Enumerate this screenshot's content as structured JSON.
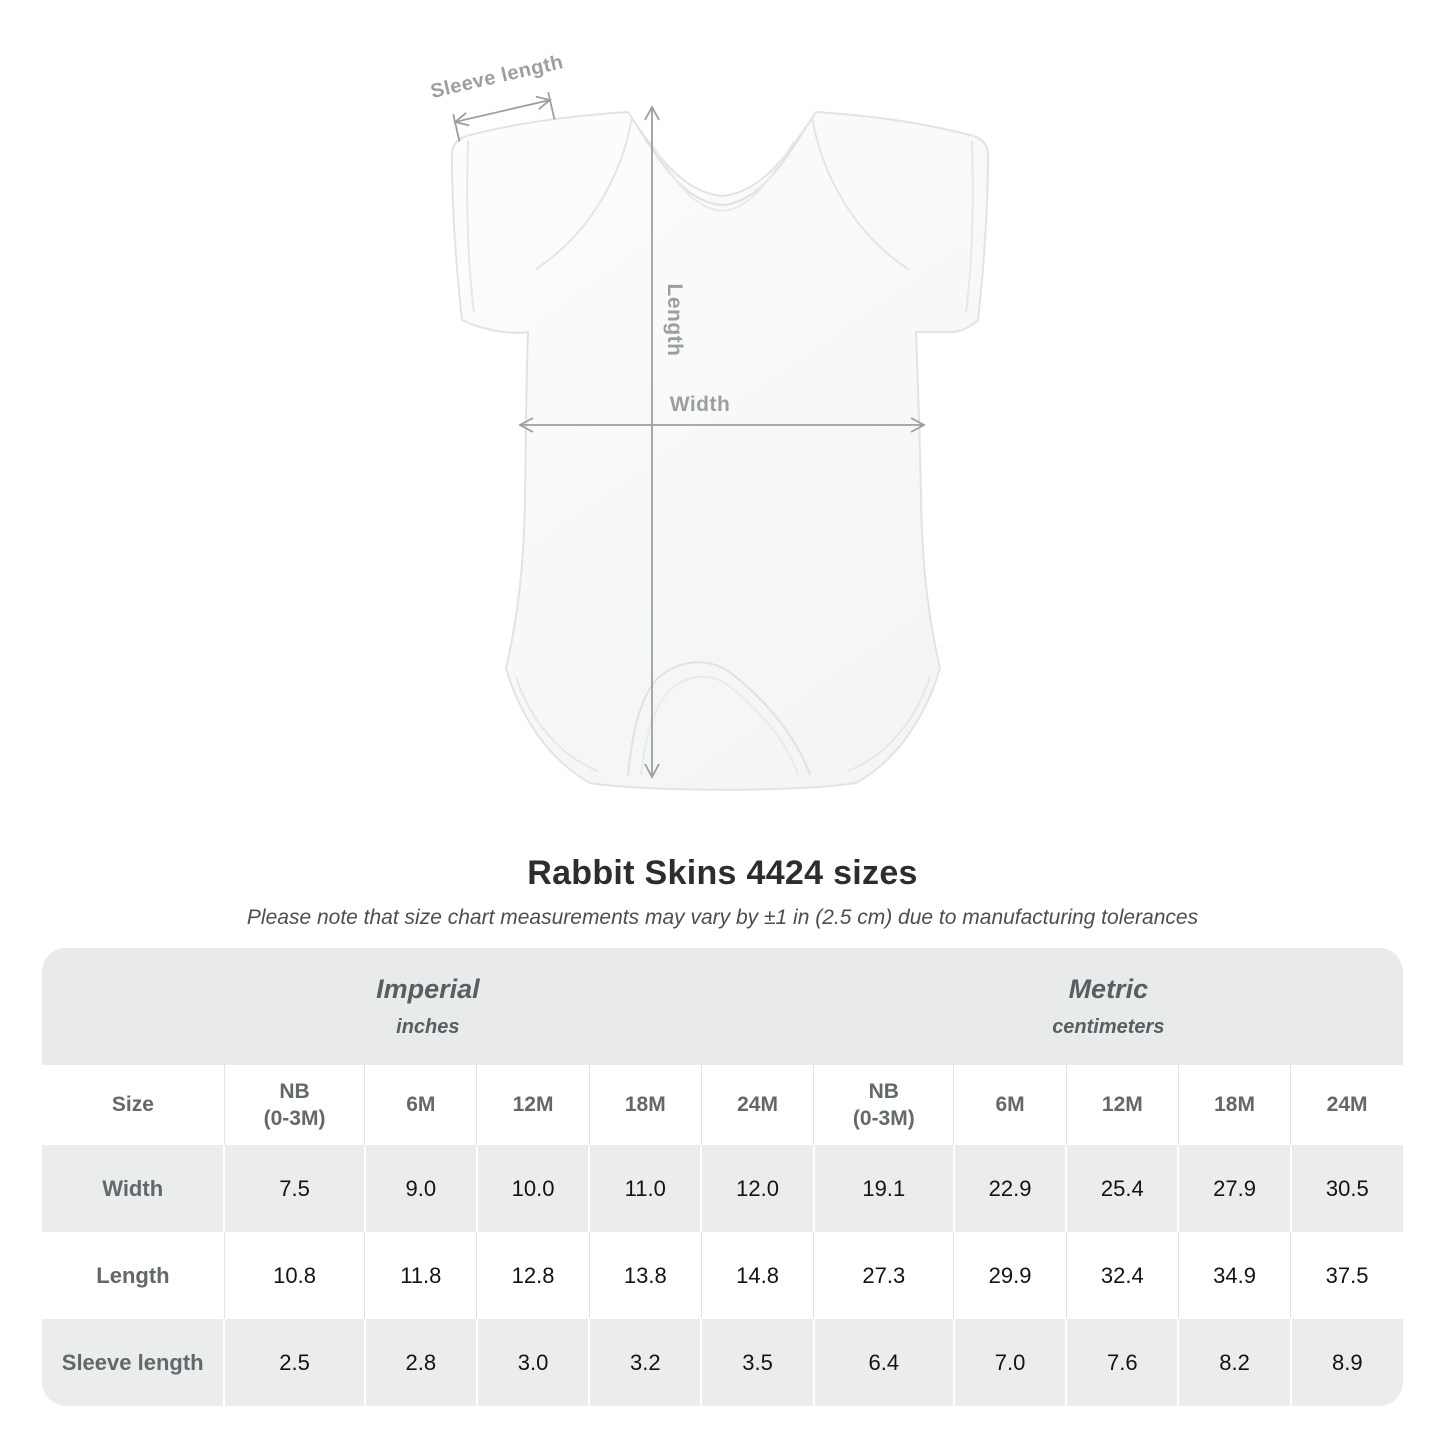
{
  "diagram": {
    "sleeve_length_label": "Sleeve length",
    "length_label": "Length",
    "width_label": "Width"
  },
  "heading": {
    "title": "Rabbit Skins 4424 sizes",
    "subtitle": "Please note that size chart measurements may vary by ±1 in (2.5 cm) due to manufacturing tolerances"
  },
  "size_table": {
    "corner_label": "Size",
    "unit_groups": [
      {
        "label": "Imperial",
        "sublabel": "inches"
      },
      {
        "label": "Metric",
        "sublabel": "centimeters"
      }
    ],
    "size_columns": [
      {
        "label": "NB",
        "sublabel": "(0-3M)"
      },
      {
        "label": "6M"
      },
      {
        "label": "12M"
      },
      {
        "label": "18M"
      },
      {
        "label": "24M"
      }
    ],
    "rows": [
      {
        "label": "Width",
        "imperial": [
          "7.5",
          "9.0",
          "10.0",
          "11.0",
          "12.0"
        ],
        "metric": [
          "19.1",
          "22.9",
          "25.4",
          "27.9",
          "30.5"
        ]
      },
      {
        "label": "Length",
        "imperial": [
          "10.8",
          "11.8",
          "12.8",
          "13.8",
          "14.8"
        ],
        "metric": [
          "27.3",
          "29.9",
          "32.4",
          "34.9",
          "37.5"
        ]
      },
      {
        "label": "Sleeve length",
        "imperial": [
          "2.5",
          "2.8",
          "3.0",
          "3.2",
          "3.5"
        ],
        "metric": [
          "6.4",
          "7.0",
          "7.6",
          "8.2",
          "8.9"
        ]
      }
    ]
  },
  "chart_data": {
    "type": "table",
    "title": "Rabbit Skins 4424 sizes",
    "columns": [
      "NB (0-3M)",
      "6M",
      "12M",
      "18M",
      "24M"
    ],
    "rows": [
      {
        "label": "Width",
        "inches": [
          7.5,
          9.0,
          10.0,
          11.0,
          12.0
        ],
        "centimeters": [
          19.1,
          22.9,
          25.4,
          27.9,
          30.5
        ]
      },
      {
        "label": "Length",
        "inches": [
          10.8,
          11.8,
          12.8,
          13.8,
          14.8
        ],
        "centimeters": [
          27.3,
          29.9,
          32.4,
          34.9,
          37.5
        ]
      },
      {
        "label": "Sleeve length",
        "inches": [
          2.5,
          2.8,
          3.0,
          3.2,
          3.5
        ],
        "centimeters": [
          6.4,
          7.0,
          7.6,
          8.2,
          8.9
        ]
      }
    ]
  },
  "colors": {
    "band_gray": "#e9eaea",
    "row_shade_gray": "#ebecec",
    "annotation_gray": "#9c9fa1",
    "header_text": "#62686c",
    "value_text": "#131313"
  }
}
